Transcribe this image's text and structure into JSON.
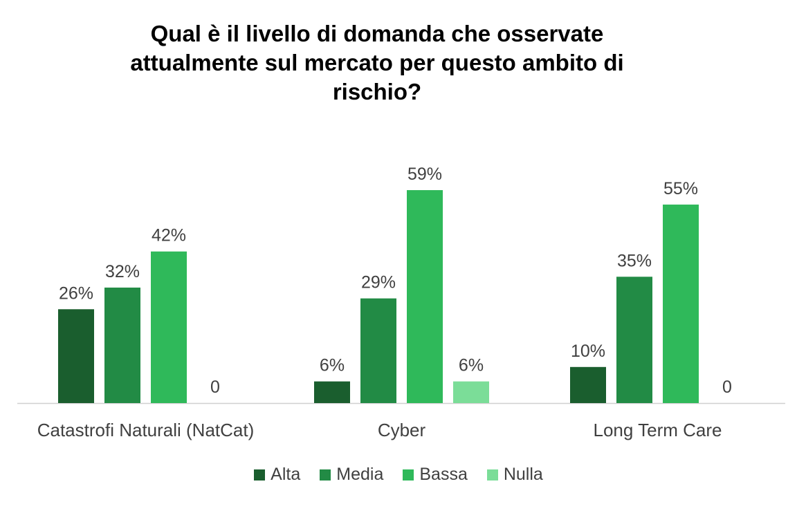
{
  "chart_data": {
    "type": "bar",
    "title_lines": [
      "Qual è il livello di domanda che osservate",
      "attualmente sul mercato per questo ambito di",
      "rischio?"
    ],
    "categories": [
      "Catastrofi Naturali (NatCat)",
      "Cyber",
      "Long Term Care"
    ],
    "series": [
      {
        "name": "Alta",
        "color": "#1a5e2e",
        "values": [
          26,
          6,
          10
        ],
        "labels": [
          "26%",
          "6%",
          "10%"
        ]
      },
      {
        "name": "Media",
        "color": "#228b45",
        "values": [
          32,
          29,
          35
        ],
        "labels": [
          "32%",
          "29%",
          "35%"
        ]
      },
      {
        "name": "Bassa",
        "color": "#2fb95a",
        "values": [
          42,
          59,
          55
        ],
        "labels": [
          "42%",
          "59%",
          "55%"
        ]
      },
      {
        "name": "Nulla",
        "color": "#7bdd98",
        "values": [
          0,
          6,
          0
        ],
        "labels": [
          "0",
          "6%",
          "0"
        ]
      }
    ],
    "unit": "%",
    "ylim": [
      0,
      59
    ],
    "grid": false,
    "legend_position": "bottom",
    "xlabel": "",
    "ylabel": ""
  }
}
